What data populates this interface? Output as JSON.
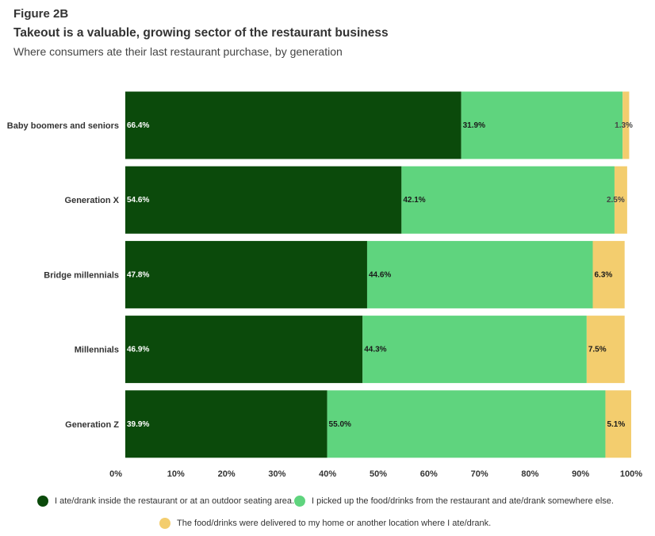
{
  "header": {
    "figure_label": "Figure 2B",
    "title": "Takeout is a valuable, growing sector of the restaurant business",
    "subtitle": "Where consumers ate their last restaurant purchase, by generation"
  },
  "chart_data": {
    "type": "bar",
    "orientation": "horizontal",
    "stacked": true,
    "categories": [
      "Baby boomers and seniors",
      "Generation X",
      "Bridge millennials",
      "Millennials",
      "Generation Z"
    ],
    "series": [
      {
        "name": "I ate/drank inside the restaurant or at an outdoor seating area.",
        "color": "#0b4a0b",
        "values": [
          66.4,
          54.6,
          47.8,
          46.9,
          39.9
        ]
      },
      {
        "name": "I picked up the food/drinks from the restaurant and ate/drank somewhere else.",
        "color": "#5fd47e",
        "values": [
          31.9,
          42.1,
          44.6,
          44.3,
          55.0
        ]
      },
      {
        "name": "The food/drinks were delivered to my home or another location where I ate/drank.",
        "color": "#f3cd6e",
        "values": [
          1.3,
          2.5,
          6.3,
          7.5,
          5.1
        ]
      }
    ],
    "data_labels": [
      [
        "66.4%",
        "31.9%",
        "1.3%"
      ],
      [
        "54.6%",
        "42.1%",
        "2.5%"
      ],
      [
        "47.8%",
        "44.6%",
        "6.3%"
      ],
      [
        "46.9%",
        "44.3%",
        "7.5%"
      ],
      [
        "39.9%",
        "55.0%",
        "5.1%"
      ]
    ],
    "x_ticks": [
      "0%",
      "10%",
      "20%",
      "30%",
      "40%",
      "50%",
      "60%",
      "70%",
      "80%",
      "90%",
      "100%"
    ],
    "xlim": [
      0,
      100
    ],
    "grid": false,
    "legend_position": "bottom"
  }
}
